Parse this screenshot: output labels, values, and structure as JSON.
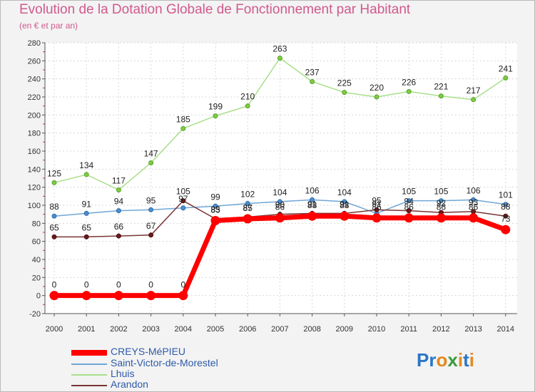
{
  "title": "Evolution de la Dotation Globale de Fonctionnement par Habitant",
  "subtitle": "(en € et par an)",
  "logo_text": "Proxiti",
  "chart_data": {
    "type": "line",
    "title": "Evolution de la Dotation Globale de Fonctionnement par Habitant",
    "subtitle": "(en € et par an)",
    "xlabel": "",
    "ylabel": "",
    "categories": [
      "2000",
      "2001",
      "2002",
      "2003",
      "2004",
      "2005",
      "2006",
      "2007",
      "2008",
      "2009",
      "2010",
      "2011",
      "2012",
      "2013",
      "2014"
    ],
    "ylim": [
      -20,
      280
    ],
    "yticks": [
      -20,
      0,
      20,
      40,
      60,
      80,
      100,
      120,
      140,
      160,
      180,
      200,
      220,
      240,
      260,
      280
    ],
    "grid": true,
    "legend_position": "bottom-left",
    "series": [
      {
        "name": "CREYS-MéPIEU",
        "color": "#ff0000",
        "values": [
          0,
          0,
          0,
          0,
          0,
          83,
          85,
          86,
          88,
          88,
          86,
          86,
          86,
          86,
          73
        ],
        "labels": [
          "0",
          "0",
          "0",
          "0",
          "0",
          "83",
          "85",
          "86",
          "88",
          "88",
          "86",
          "86",
          "86",
          "86",
          "73"
        ]
      },
      {
        "name": "Saint-Victor-de-Morestel",
        "color": "#6fa6d6",
        "values": [
          88,
          91,
          94,
          95,
          97,
          99,
          102,
          104,
          106,
          104,
          91,
          105,
          105,
          106,
          101
        ],
        "labels": [
          "88",
          "91",
          "94",
          "95",
          "97",
          "99",
          "102",
          "104",
          "106",
          "104",
          "91",
          "105",
          "105",
          "106",
          "101"
        ]
      },
      {
        "name": "Lhuis",
        "color": "#a8e08a",
        "values": [
          125,
          134,
          117,
          147,
          185,
          199,
          210,
          263,
          237,
          225,
          220,
          226,
          221,
          217,
          241
        ],
        "labels": [
          "125",
          "134",
          "117",
          "147",
          "185",
          "199",
          "210",
          "263",
          "237",
          "225",
          "220",
          "226",
          "221",
          "217",
          "241"
        ]
      },
      {
        "name": "Arandon",
        "color": "#7a3535",
        "values": [
          65,
          65,
          66,
          67,
          105,
          85,
          87,
          90,
          91,
          91,
          95,
          94,
          92,
          93,
          88
        ],
        "labels": [
          "65",
          "65",
          "66",
          "67",
          "105",
          "85",
          "87",
          "90",
          "91",
          "91",
          "95",
          "94",
          "92",
          "93",
          "88"
        ]
      }
    ]
  }
}
